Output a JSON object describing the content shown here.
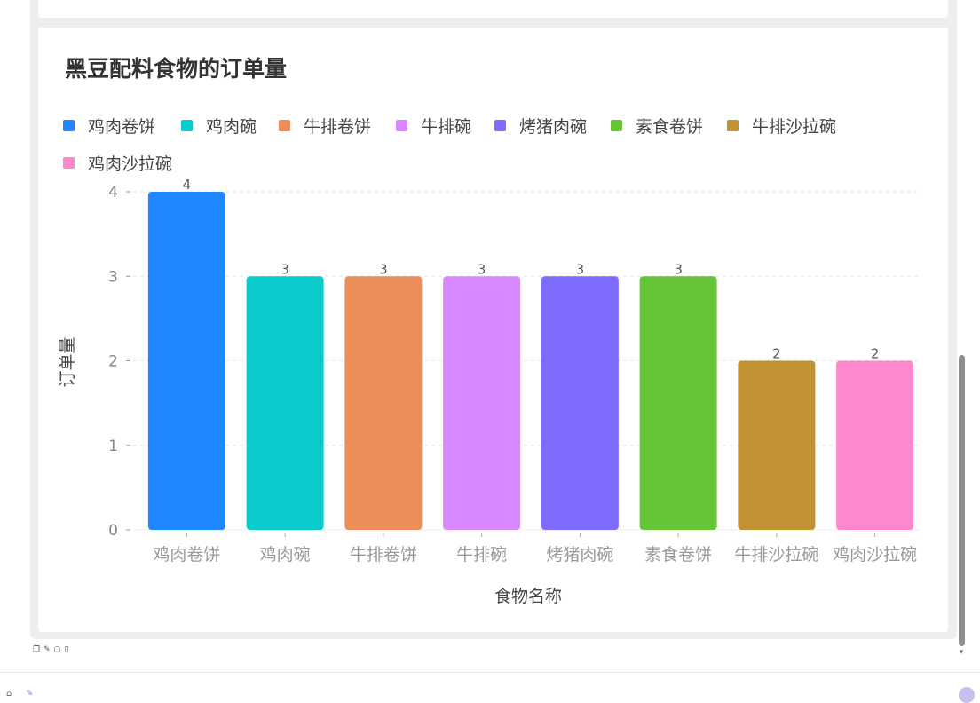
{
  "chart_data": {
    "type": "bar",
    "title": "黑豆配料食物的订单量",
    "xlabel": "食物名称",
    "ylabel": "订单量",
    "categories": [
      "鸡肉卷饼",
      "鸡肉碗",
      "牛排卷饼",
      "牛排碗",
      "烤猪肉碗",
      "素食卷饼",
      "牛排沙拉碗",
      "鸡肉沙拉碗"
    ],
    "values": [
      4,
      3,
      3,
      3,
      3,
      3,
      2,
      2
    ],
    "colors": [
      "#1f87ff",
      "#0bcacb",
      "#ed8d5a",
      "#d989ff",
      "#7e6bff",
      "#65c536",
      "#c19232",
      "#ff88cc"
    ],
    "ylim": [
      0,
      4
    ],
    "yticks": [
      0,
      1,
      2,
      3,
      4
    ],
    "grid": true,
    "legend_position": "top-left",
    "data_labels": true
  },
  "toolbar": {
    "icons": [
      "copy-icon",
      "edit-icon",
      "refresh-icon",
      "delete-icon"
    ]
  }
}
